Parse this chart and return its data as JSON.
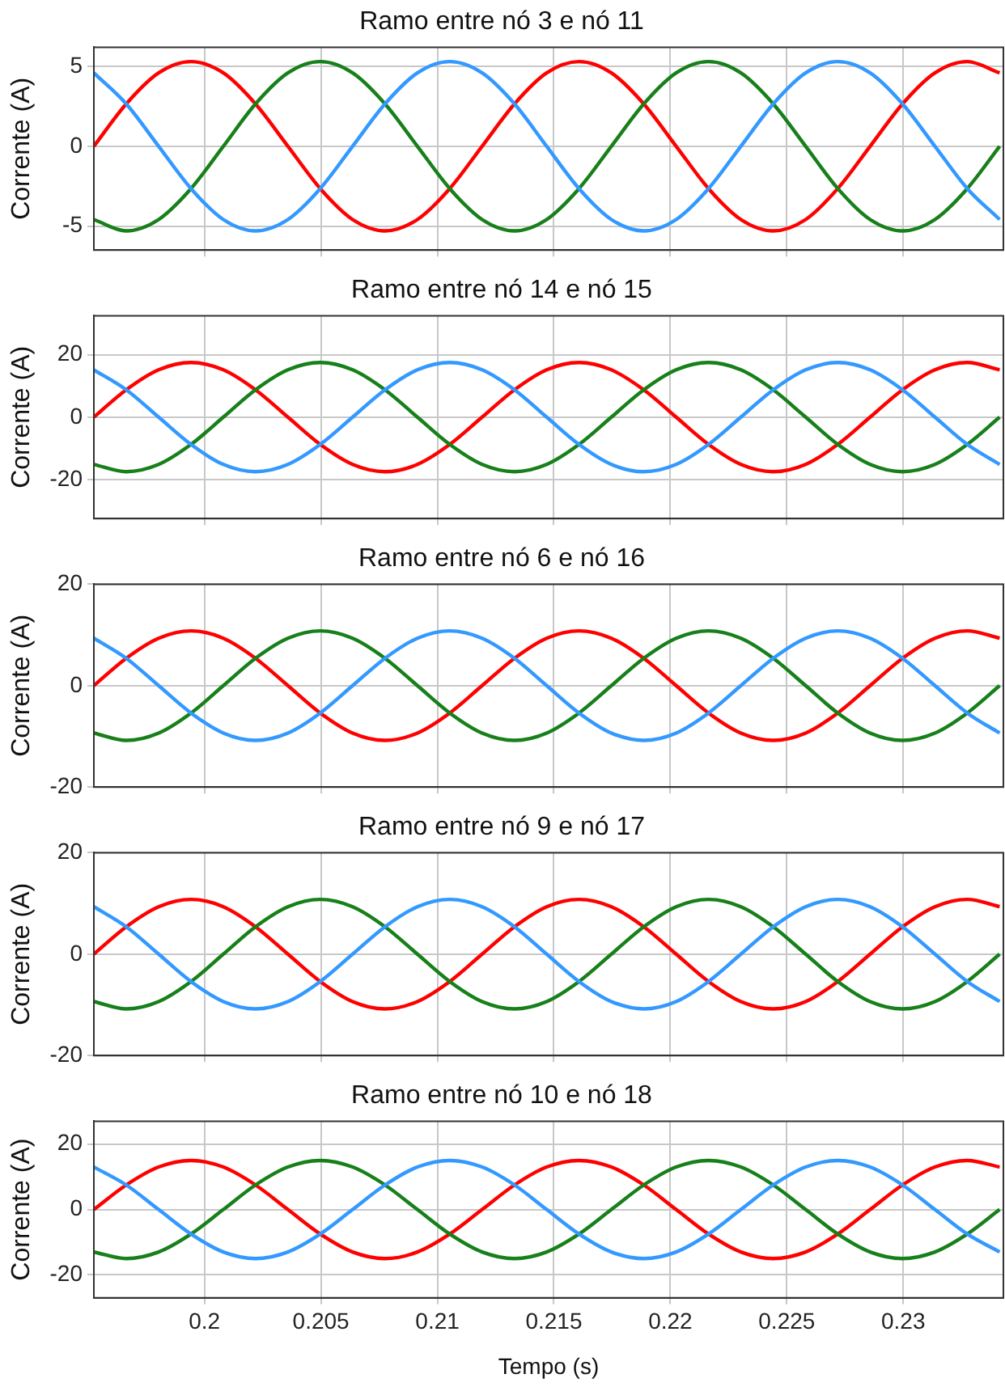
{
  "chart_data": [
    {
      "type": "line",
      "title": "Ramo entre nó 3 e nó 11",
      "ylabel": "Corrente (A)",
      "x": [
        0.19525,
        0.19664,
        0.19803,
        0.19942,
        0.20081,
        0.20219,
        0.20358,
        0.20497,
        0.20636,
        0.20775,
        0.20914,
        0.21053,
        0.21192,
        0.21331,
        0.21469,
        0.21608,
        0.21747,
        0.21886,
        0.22025,
        0.22164,
        0.22303,
        0.22442,
        0.22581,
        0.22719,
        0.22858,
        0.22997,
        0.23136,
        0.23275,
        0.23414
      ],
      "xlim": [
        0.19525,
        0.2343
      ],
      "xticks": [
        0.2,
        0.205,
        0.21,
        0.215,
        0.22,
        0.225,
        0.23
      ],
      "ylim": [
        -6.5,
        6.2
      ],
      "yticks": [
        -5,
        0,
        5
      ],
      "grid": true,
      "tick_labels": "y",
      "series": [
        {
          "color": "#3399ff",
          "values": [
            4.59,
            2.65,
            0,
            -2.65,
            -4.59,
            -5.3,
            -4.59,
            -2.65,
            0,
            2.65,
            4.59,
            5.3,
            4.59,
            2.65,
            0,
            -2.65,
            -4.59,
            -5.3,
            -4.59,
            -2.65,
            0,
            2.65,
            4.59,
            5.3,
            4.59,
            2.65,
            0,
            -2.65,
            -4.59
          ]
        },
        {
          "color": "#17801a",
          "values": [
            -4.59,
            -5.3,
            -4.59,
            -2.65,
            0,
            2.65,
            4.59,
            5.3,
            4.59,
            2.65,
            0,
            -2.65,
            -4.59,
            -5.3,
            -4.59,
            -2.65,
            0,
            2.65,
            4.59,
            5.3,
            4.59,
            2.65,
            0,
            -2.65,
            -4.59,
            -5.3,
            -4.59,
            -2.65,
            0
          ]
        },
        {
          "color": "#ff0000",
          "values": [
            0,
            2.65,
            4.59,
            5.3,
            4.59,
            2.65,
            0,
            -2.65,
            -4.59,
            -5.3,
            -4.59,
            -2.65,
            0,
            2.65,
            4.59,
            5.3,
            4.59,
            2.65,
            0,
            -2.65,
            -4.59,
            -5.3,
            -4.59,
            -2.65,
            0,
            2.65,
            4.59,
            5.3,
            4.59
          ]
        }
      ]
    },
    {
      "type": "line",
      "title": "Ramo entre nó 14 e nó 15",
      "ylabel": "Corrente (A)",
      "x": [
        0.19525,
        0.19664,
        0.19803,
        0.19942,
        0.20081,
        0.20219,
        0.20358,
        0.20497,
        0.20636,
        0.20775,
        0.20914,
        0.21053,
        0.21192,
        0.21331,
        0.21469,
        0.21608,
        0.21747,
        0.21886,
        0.22025,
        0.22164,
        0.22303,
        0.22442,
        0.22581,
        0.22719,
        0.22858,
        0.22997,
        0.23136,
        0.23275,
        0.23414
      ],
      "xlim": [
        0.19525,
        0.2343
      ],
      "xticks": [
        0.2,
        0.205,
        0.21,
        0.215,
        0.22,
        0.225,
        0.23
      ],
      "ylim": [
        -32.5,
        32.5
      ],
      "yticks": [
        -20,
        0,
        20
      ],
      "grid": true,
      "tick_labels": "y",
      "series": [
        {
          "color": "#3399ff",
          "values": [
            15.16,
            8.75,
            0,
            -8.75,
            -15.16,
            -17.5,
            -15.16,
            -8.75,
            0,
            8.75,
            15.16,
            17.5,
            15.16,
            8.75,
            0,
            -8.75,
            -15.16,
            -17.5,
            -15.16,
            -8.75,
            0,
            8.75,
            15.16,
            17.5,
            15.16,
            8.75,
            0,
            -8.75,
            -15.16
          ]
        },
        {
          "color": "#17801a",
          "values": [
            -15.16,
            -17.5,
            -15.16,
            -8.75,
            0,
            8.75,
            15.16,
            17.5,
            15.16,
            8.75,
            0,
            -8.75,
            -15.16,
            -17.5,
            -15.16,
            -8.75,
            0,
            8.75,
            15.16,
            17.5,
            15.16,
            8.75,
            0,
            -8.75,
            -15.16,
            -17.5,
            -15.16,
            -8.75,
            0
          ]
        },
        {
          "color": "#ff0000",
          "values": [
            0,
            8.75,
            15.16,
            17.5,
            15.16,
            8.75,
            0,
            -8.75,
            -15.16,
            -17.5,
            -15.16,
            -8.75,
            0,
            8.75,
            15.16,
            17.5,
            15.16,
            8.75,
            0,
            -8.75,
            -15.16,
            -17.5,
            -15.16,
            -8.75,
            0,
            8.75,
            15.16,
            17.5,
            15.16
          ]
        }
      ]
    },
    {
      "type": "line",
      "title": "Ramo entre nó 6 e nó 16",
      "ylabel": "Corrente (A)",
      "x": [
        0.19525,
        0.19664,
        0.19803,
        0.19942,
        0.20081,
        0.20219,
        0.20358,
        0.20497,
        0.20636,
        0.20775,
        0.20914,
        0.21053,
        0.21192,
        0.21331,
        0.21469,
        0.21608,
        0.21747,
        0.21886,
        0.22025,
        0.22164,
        0.22303,
        0.22442,
        0.22581,
        0.22719,
        0.22858,
        0.22997,
        0.23136,
        0.23275,
        0.23414
      ],
      "xlim": [
        0.19525,
        0.2343
      ],
      "xticks": [
        0.2,
        0.205,
        0.21,
        0.215,
        0.22,
        0.225,
        0.23
      ],
      "ylim": [
        -20,
        20
      ],
      "yticks": [
        -20,
        0,
        20
      ],
      "grid": true,
      "tick_labels": "y",
      "series": [
        {
          "color": "#3399ff",
          "values": [
            9.35,
            5.4,
            0,
            -5.4,
            -9.35,
            -10.8,
            -9.35,
            -5.4,
            0,
            5.4,
            9.35,
            10.8,
            9.35,
            5.4,
            0,
            -5.4,
            -9.35,
            -10.8,
            -9.35,
            -5.4,
            0,
            5.4,
            9.35,
            10.8,
            9.35,
            5.4,
            0,
            -5.4,
            -9.35
          ]
        },
        {
          "color": "#17801a",
          "values": [
            -9.35,
            -10.8,
            -9.35,
            -5.4,
            0,
            5.4,
            9.35,
            10.8,
            9.35,
            5.4,
            0,
            -5.4,
            -9.35,
            -10.8,
            -9.35,
            -5.4,
            0,
            5.4,
            9.35,
            10.8,
            9.35,
            5.4,
            0,
            -5.4,
            -9.35,
            -10.8,
            -9.35,
            -5.4,
            0
          ]
        },
        {
          "color": "#ff0000",
          "values": [
            0,
            5.4,
            9.35,
            10.8,
            9.35,
            5.4,
            0,
            -5.4,
            -9.35,
            -10.8,
            -9.35,
            -5.4,
            0,
            5.4,
            9.35,
            10.8,
            9.35,
            5.4,
            0,
            -5.4,
            -9.35,
            -10.8,
            -9.35,
            -5.4,
            0,
            5.4,
            9.35,
            10.8,
            9.35
          ]
        }
      ]
    },
    {
      "type": "line",
      "title": "Ramo entre nó 9 e nó 17",
      "ylabel": "Corrente (A)",
      "x": [
        0.19525,
        0.19664,
        0.19803,
        0.19942,
        0.20081,
        0.20219,
        0.20358,
        0.20497,
        0.20636,
        0.20775,
        0.20914,
        0.21053,
        0.21192,
        0.21331,
        0.21469,
        0.21608,
        0.21747,
        0.21886,
        0.22025,
        0.22164,
        0.22303,
        0.22442,
        0.22581,
        0.22719,
        0.22858,
        0.22997,
        0.23136,
        0.23275,
        0.23414
      ],
      "xlim": [
        0.19525,
        0.2343
      ],
      "xticks": [
        0.2,
        0.205,
        0.21,
        0.215,
        0.22,
        0.225,
        0.23
      ],
      "ylim": [
        -20,
        20
      ],
      "yticks": [
        -20,
        0,
        20
      ],
      "grid": true,
      "tick_labels": "y",
      "series": [
        {
          "color": "#3399ff",
          "values": [
            9.35,
            5.4,
            0,
            -5.4,
            -9.35,
            -10.8,
            -9.35,
            -5.4,
            0,
            5.4,
            9.35,
            10.8,
            9.35,
            5.4,
            0,
            -5.4,
            -9.35,
            -10.8,
            -9.35,
            -5.4,
            0,
            5.4,
            9.35,
            10.8,
            9.35,
            5.4,
            0,
            -5.4,
            -9.35
          ]
        },
        {
          "color": "#17801a",
          "values": [
            -9.35,
            -10.8,
            -9.35,
            -5.4,
            0,
            5.4,
            9.35,
            10.8,
            9.35,
            5.4,
            0,
            -5.4,
            -9.35,
            -10.8,
            -9.35,
            -5.4,
            0,
            5.4,
            9.35,
            10.8,
            9.35,
            5.4,
            0,
            -5.4,
            -9.35,
            -10.8,
            -9.35,
            -5.4,
            0
          ]
        },
        {
          "color": "#ff0000",
          "values": [
            0,
            5.4,
            9.35,
            10.8,
            9.35,
            5.4,
            0,
            -5.4,
            -9.35,
            -10.8,
            -9.35,
            -5.4,
            0,
            5.4,
            9.35,
            10.8,
            9.35,
            5.4,
            0,
            -5.4,
            -9.35,
            -10.8,
            -9.35,
            -5.4,
            0,
            5.4,
            9.35,
            10.8,
            9.35
          ]
        }
      ]
    },
    {
      "type": "line",
      "title": "Ramo entre nó 10 e nó 18",
      "xlabel": "Tempo (s)",
      "ylabel": "Corrente (A)",
      "x": [
        0.19525,
        0.19664,
        0.19803,
        0.19942,
        0.20081,
        0.20219,
        0.20358,
        0.20497,
        0.20636,
        0.20775,
        0.20914,
        0.21053,
        0.21192,
        0.21331,
        0.21469,
        0.21608,
        0.21747,
        0.21886,
        0.22025,
        0.22164,
        0.22303,
        0.22442,
        0.22581,
        0.22719,
        0.22858,
        0.22997,
        0.23136,
        0.23275,
        0.23414
      ],
      "xlim": [
        0.19525,
        0.2343
      ],
      "xticks": [
        0.2,
        0.205,
        0.21,
        0.215,
        0.22,
        0.225,
        0.23
      ],
      "ylim": [
        -27,
        27
      ],
      "yticks": [
        -20,
        0,
        20
      ],
      "grid": true,
      "series": [
        {
          "color": "#3399ff",
          "values": [
            12.99,
            7.5,
            0,
            -7.5,
            -12.99,
            -15,
            -12.99,
            -7.5,
            0,
            7.5,
            12.99,
            15,
            12.99,
            7.5,
            0,
            -7.5,
            -12.99,
            -15,
            -12.99,
            -7.5,
            0,
            7.5,
            12.99,
            15,
            12.99,
            7.5,
            0,
            -7.5,
            -12.99
          ]
        },
        {
          "color": "#17801a",
          "values": [
            -12.99,
            -15,
            -12.99,
            -7.5,
            0,
            7.5,
            12.99,
            15,
            12.99,
            7.5,
            0,
            -7.5,
            -12.99,
            -15,
            -12.99,
            -7.5,
            0,
            7.5,
            12.99,
            15,
            12.99,
            7.5,
            0,
            -7.5,
            -12.99,
            -15,
            -12.99,
            -7.5,
            0
          ]
        },
        {
          "color": "#ff0000",
          "values": [
            0,
            7.5,
            12.99,
            15,
            12.99,
            7.5,
            0,
            -7.5,
            -12.99,
            -15,
            -12.99,
            -7.5,
            0,
            7.5,
            12.99,
            15,
            12.99,
            7.5,
            0,
            -7.5,
            -12.99,
            -15,
            -12.99,
            -7.5,
            0,
            7.5,
            12.99,
            15,
            12.99
          ]
        }
      ]
    }
  ]
}
